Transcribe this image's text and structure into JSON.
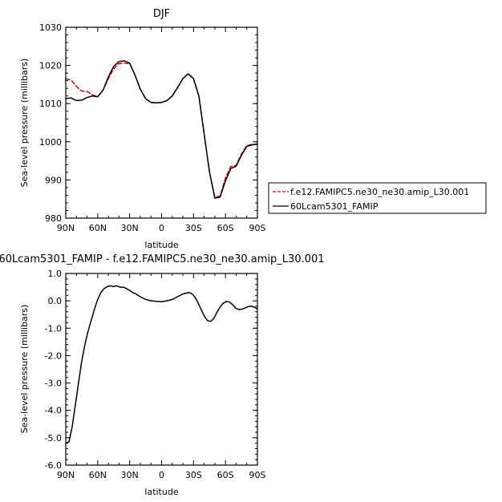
{
  "chart_data": [
    {
      "type": "line",
      "title": "DJF",
      "xlabel": "latitude",
      "ylabel": "Sea-level pressure (millibars)",
      "x_unit": "degrees latitude (north positive)",
      "xlim": [
        90,
        -90
      ],
      "ylim": [
        980,
        1030
      ],
      "xticks": [
        90,
        60,
        30,
        0,
        -30,
        -60,
        -90
      ],
      "xtick_labels": [
        "90N",
        "60N",
        "30N",
        "0",
        "30S",
        "60S",
        "90S"
      ],
      "yticks": [
        980,
        990,
        1000,
        1010,
        1020,
        1030
      ],
      "ytick_labels": [
        "980",
        "990",
        "1000",
        "1010",
        "1020",
        "1030"
      ],
      "legend_position": "right",
      "series": [
        {
          "name": "f.e12.FAMIPC5.ne30_ne30.amip_L30.001",
          "color": "#dd0000",
          "dash": "dashed",
          "x": [
            90,
            85,
            80,
            75,
            70,
            65,
            60,
            55,
            50,
            45,
            40,
            35,
            30,
            25,
            20,
            15,
            10,
            5,
            0,
            -5,
            -10,
            -15,
            -20,
            -25,
            -30,
            -35,
            -40,
            -45,
            -50,
            -55,
            -60,
            -65,
            -70,
            -75,
            -80,
            -85,
            -90
          ],
          "y": [
            1016.5,
            1016.2,
            1014.5,
            1013.3,
            1013.2,
            1012.3,
            1011.8,
            1013.5,
            1016.5,
            1019.2,
            1020.5,
            1020.6,
            1020.5,
            1017.5,
            1013.8,
            1011.3,
            1010.3,
            1010.2,
            1010.3,
            1010.8,
            1012.0,
            1014.2,
            1016.6,
            1017.8,
            1016.4,
            1012.0,
            1002.0,
            992.0,
            985.5,
            985.8,
            990.5,
            993.5,
            993.8,
            996.8,
            999.0,
            999.3,
            999.4
          ]
        },
        {
          "name": "60Lcam5301_FAMIP",
          "color": "#000000",
          "dash": "solid",
          "x": [
            90,
            85,
            80,
            75,
            70,
            65,
            60,
            55,
            50,
            45,
            40,
            35,
            30,
            25,
            20,
            15,
            10,
            5,
            0,
            -5,
            -10,
            -15,
            -20,
            -25,
            -30,
            -35,
            -40,
            -45,
            -50,
            -55,
            -60,
            -65,
            -70,
            -75,
            -80,
            -85,
            -90
          ],
          "y": [
            1011.3,
            1011.5,
            1010.8,
            1010.9,
            1011.6,
            1012.0,
            1011.8,
            1013.5,
            1017.0,
            1019.8,
            1021.0,
            1021.2,
            1020.6,
            1017.5,
            1013.8,
            1011.3,
            1010.3,
            1010.2,
            1010.3,
            1010.8,
            1012.0,
            1014.2,
            1016.6,
            1017.8,
            1016.6,
            1012.0,
            1002.0,
            992.0,
            985.2,
            985.5,
            989.8,
            993.0,
            993.6,
            996.5,
            998.8,
            999.2,
            999.4
          ]
        }
      ]
    },
    {
      "type": "line",
      "title": "60Lcam5301_FAMIP - f.e12.FAMIPC5.ne30_ne30.amip_L30.001",
      "xlabel": "latitude",
      "ylabel": "Sea-level pressure (millibars)",
      "x_unit": "degrees latitude (north positive)",
      "xlim": [
        90,
        -90
      ],
      "ylim": [
        -6.0,
        1.0
      ],
      "xticks": [
        90,
        60,
        30,
        0,
        -30,
        -60,
        -90
      ],
      "xtick_labels": [
        "90N",
        "60N",
        "30N",
        "0",
        "30S",
        "60S",
        "90S"
      ],
      "yticks": [
        -6.0,
        -5.0,
        -4.0,
        -3.0,
        -2.0,
        -1.0,
        0.0,
        1.0
      ],
      "ytick_labels": [
        "-6.0",
        "-5.0",
        "-4.0",
        "-3.0",
        "-2.0",
        "-1.0",
        "0.0",
        "1.0"
      ],
      "series": [
        {
          "color": "#000000",
          "dash": "solid",
          "x": [
            90,
            87,
            84,
            81,
            78,
            75,
            72,
            69,
            66,
            63,
            60,
            57,
            54,
            51,
            48,
            45,
            42,
            39,
            36,
            33,
            30,
            27,
            24,
            20,
            15,
            10,
            5,
            0,
            -5,
            -10,
            -15,
            -20,
            -25,
            -28,
            -31,
            -34,
            -37,
            -40,
            -43,
            -46,
            -49,
            -52,
            -55,
            -58,
            -61,
            -64,
            -67,
            -70,
            -73,
            -76,
            -79,
            -82,
            -85,
            -88,
            -90
          ],
          "y": [
            -5.2,
            -5.15,
            -4.6,
            -3.8,
            -3.0,
            -2.2,
            -1.6,
            -1.1,
            -0.7,
            -0.3,
            0.05,
            0.3,
            0.45,
            0.52,
            0.55,
            0.52,
            0.55,
            0.5,
            0.5,
            0.45,
            0.38,
            0.3,
            0.25,
            0.15,
            0.05,
            0.0,
            -0.02,
            -0.03,
            0.0,
            0.05,
            0.15,
            0.25,
            0.3,
            0.28,
            0.15,
            -0.05,
            -0.3,
            -0.55,
            -0.72,
            -0.75,
            -0.65,
            -0.42,
            -0.22,
            -0.08,
            -0.02,
            -0.05,
            -0.15,
            -0.28,
            -0.32,
            -0.3,
            -0.25,
            -0.2,
            -0.2,
            -0.25,
            -0.3
          ]
        }
      ]
    }
  ]
}
